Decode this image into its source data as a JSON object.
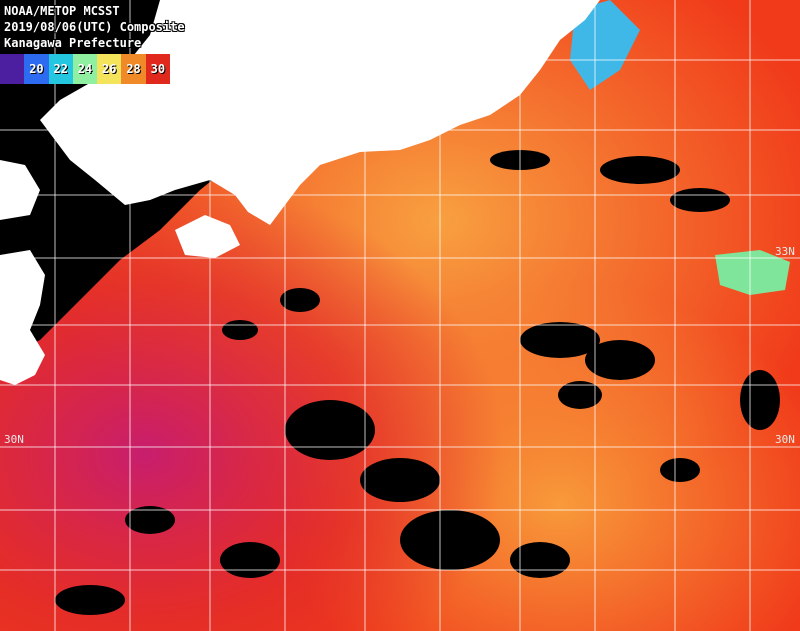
{
  "title": {
    "line1": "NOAA/METOP MCSST",
    "line2": "2019/08/06(UTC) Composite",
    "line3": "Kanagawa Prefecture"
  },
  "colorbar": {
    "labels": [
      "",
      "20",
      "22",
      "24",
      "26",
      "28",
      "30"
    ],
    "colors": [
      "#4b1fa0",
      "#2d6cf0",
      "#24c6e0",
      "#8ef0a0",
      "#f4e45c",
      "#f08a28",
      "#e0281c"
    ]
  },
  "lat_labels": {
    "n30_left": "30N",
    "n30_right": "30N",
    "n33_right": "33N"
  },
  "colors": {
    "sea_warm": "#f03a1a",
    "sea_hot": "#c81e6e",
    "sea_mild": "#f4902a",
    "land": "#ffffff",
    "cloud": "#000000",
    "grid": "#ffffff"
  }
}
